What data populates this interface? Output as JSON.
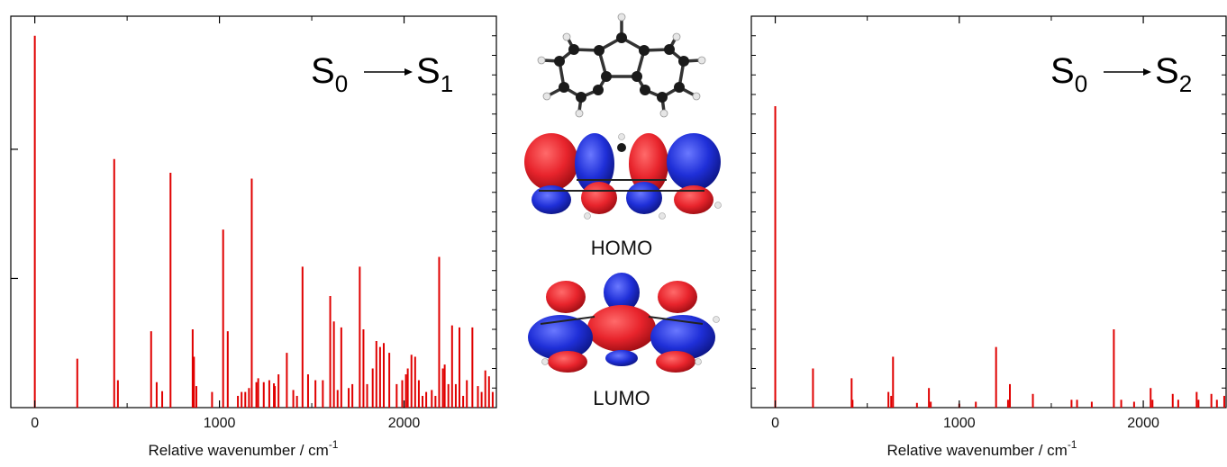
{
  "chart_data": [
    {
      "type": "bar",
      "annotation": {
        "from": "S",
        "from_sub": "0",
        "to": "S",
        "to_sub": "1"
      },
      "xlabel": "Relative wavenumber / cm",
      "xlabel_sup": "-1",
      "xlim": [
        -130,
        2500
      ],
      "ylim": [
        0,
        1.0
      ],
      "x_ticks": [
        0,
        1000,
        2000
      ],
      "x_minor": [
        500,
        1500
      ],
      "y_ticks": [
        0.33,
        0.66
      ],
      "grid": false,
      "bar_color": "#e00000",
      "x": [
        0,
        230,
        430,
        450,
        630,
        660,
        690,
        735,
        855,
        862,
        875,
        960,
        1020,
        1045,
        1100,
        1120,
        1140,
        1160,
        1175,
        1200,
        1210,
        1240,
        1270,
        1295,
        1300,
        1320,
        1365,
        1400,
        1420,
        1450,
        1480,
        1520,
        1560,
        1600,
        1620,
        1640,
        1660,
        1700,
        1720,
        1760,
        1780,
        1800,
        1830,
        1850,
        1870,
        1890,
        1920,
        1960,
        1990,
        2010,
        2020,
        2040,
        2060,
        2080,
        2100,
        2120,
        2150,
        2170,
        2190,
        2210,
        2220,
        2240,
        2260,
        2280,
        2300,
        2320,
        2340,
        2370,
        2400,
        2420,
        2440,
        2460,
        2480
      ],
      "values": [
        0.95,
        0.125,
        0.635,
        0.07,
        0.195,
        0.065,
        0.042,
        0.6,
        0.2,
        0.13,
        0.055,
        0.04,
        0.455,
        0.195,
        0.03,
        0.04,
        0.04,
        0.05,
        0.585,
        0.065,
        0.075,
        0.065,
        0.07,
        0.062,
        0.055,
        0.085,
        0.14,
        0.045,
        0.03,
        0.36,
        0.085,
        0.07,
        0.07,
        0.285,
        0.22,
        0.045,
        0.205,
        0.05,
        0.06,
        0.36,
        0.2,
        0.06,
        0.1,
        0.17,
        0.155,
        0.165,
        0.14,
        0.06,
        0.07,
        0.085,
        0.1,
        0.135,
        0.13,
        0.07,
        0.03,
        0.04,
        0.045,
        0.03,
        0.385,
        0.1,
        0.11,
        0.06,
        0.21,
        0.06,
        0.205,
        0.03,
        0.07,
        0.205,
        0.055,
        0.04,
        0.095,
        0.08,
        0.04
      ]
    },
    {
      "type": "bar",
      "annotation": {
        "from": "S",
        "from_sub": "0",
        "to": "S",
        "to_sub": "2"
      },
      "xlabel": "Relative wavenumber / cm",
      "xlabel_sup": "-1",
      "xlim": [
        -130,
        2450
      ],
      "ylim": [
        0,
        1.0
      ],
      "x_ticks": [
        0,
        1000,
        2000
      ],
      "x_minor": [
        500,
        1500
      ],
      "y_ticks": [],
      "grid": false,
      "bar_color": "#e00000",
      "x": [
        0,
        205,
        415,
        420,
        615,
        630,
        640,
        770,
        835,
        845,
        1000,
        1090,
        1200,
        1265,
        1275,
        1400,
        1610,
        1640,
        1720,
        1840,
        1880,
        1950,
        2040,
        2050,
        2160,
        2190,
        2290,
        2300,
        2370,
        2400,
        2440
      ],
      "values": [
        0.77,
        0.1,
        0.075,
        0.02,
        0.04,
        0.03,
        0.13,
        0.012,
        0.05,
        0.015,
        0.01,
        0.015,
        0.155,
        0.02,
        0.06,
        0.035,
        0.02,
        0.02,
        0.015,
        0.2,
        0.02,
        0.015,
        0.05,
        0.02,
        0.035,
        0.02,
        0.04,
        0.02,
        0.035,
        0.02,
        0.03
      ]
    }
  ],
  "orbitals": {
    "homo_label": "HOMO",
    "lumo_label": "LUMO"
  },
  "colors": {
    "lobe_positive": "#e8242c",
    "lobe_negative": "#1f2fd8",
    "carbon": "#1a1a1a",
    "hydrogen": "#e6e6e6",
    "bond": "#333333"
  }
}
